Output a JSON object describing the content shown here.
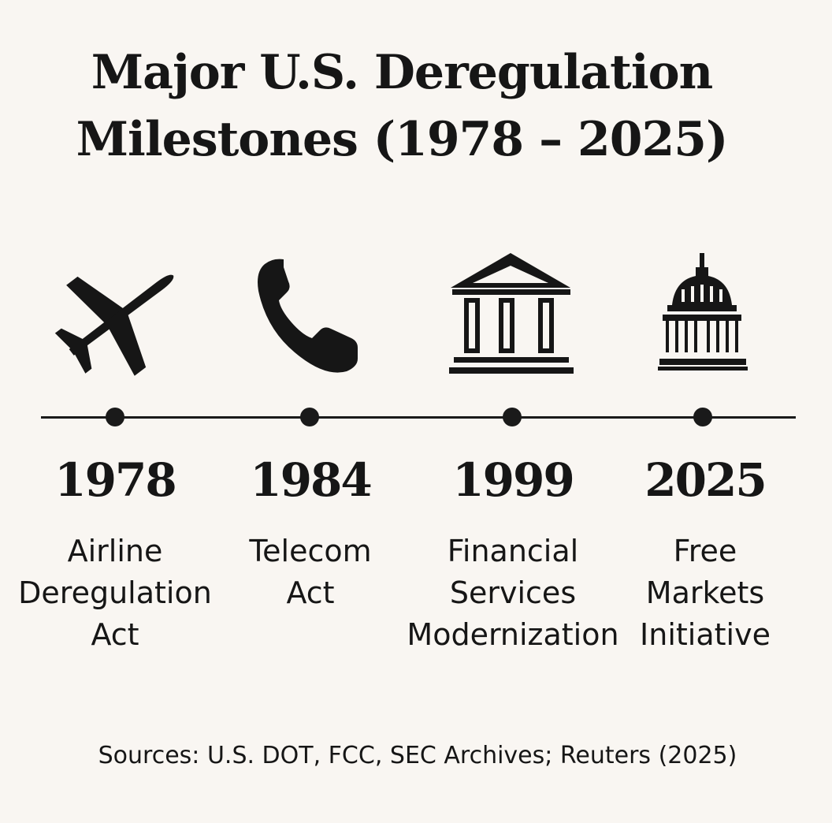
{
  "title": {
    "line1": "Major U.S. Deregulation",
    "line2": "Milestones (1978 – 2025)"
  },
  "milestones": [
    {
      "year": "1978",
      "label_lines": [
        "Airline",
        "Deregulation",
        "Act"
      ],
      "icon": "airplane-icon"
    },
    {
      "year": "1984",
      "label_lines": [
        "Telecom",
        "Act"
      ],
      "icon": "telephone-icon"
    },
    {
      "year": "1999",
      "label_lines": [
        "Financial",
        "Services",
        "Modernization"
      ],
      "icon": "bank-building-icon"
    },
    {
      "year": "2025",
      "label_lines": [
        "Free",
        "Markets",
        "Initiative"
      ],
      "icon": "capitol-dome-icon"
    }
  ],
  "source": "Sources: U.S. DOT, FCC, SEC Archives; Reuters (2025)",
  "colors": {
    "background": "#f9f6f2",
    "ink": "#161616"
  }
}
